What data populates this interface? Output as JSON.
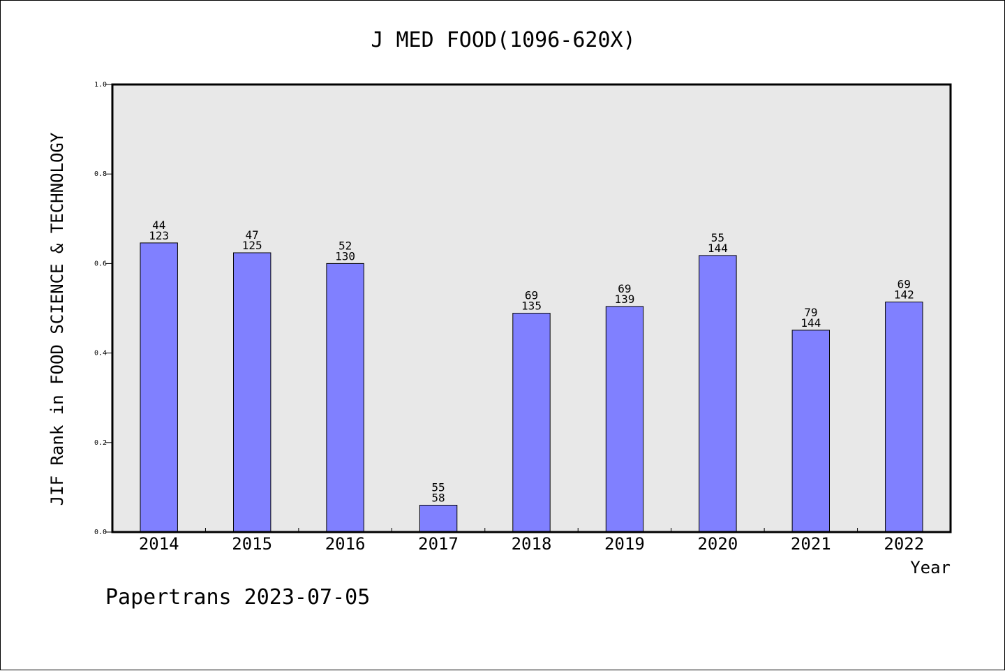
{
  "chart_data": {
    "type": "bar",
    "title": "J MED FOOD(1096-620X)",
    "xlabel": "Year",
    "ylabel": "JIF Rank in FOOD SCIENCE & TECHNOLOGY",
    "categories": [
      "2014",
      "2015",
      "2016",
      "2017",
      "2018",
      "2019",
      "2020",
      "2021",
      "2022"
    ],
    "values": [
      0.646,
      0.624,
      0.6,
      0.06,
      0.489,
      0.504,
      0.618,
      0.451,
      0.514
    ],
    "rank": [
      44,
      47,
      52,
      55,
      69,
      69,
      55,
      79,
      69
    ],
    "total": [
      123,
      125,
      130,
      58,
      135,
      139,
      144,
      144,
      142
    ],
    "ylim": [
      0,
      1.0
    ],
    "yticks": [
      "0.0",
      "0.2",
      "0.4",
      "0.6",
      "0.8",
      "1.0"
    ],
    "grid": false,
    "colors": {
      "bar_fill": "#8080ff",
      "bar_stroke": "#000000",
      "plot_background": "#e8e8e8"
    }
  },
  "footer": "Papertrans 2023-07-05"
}
